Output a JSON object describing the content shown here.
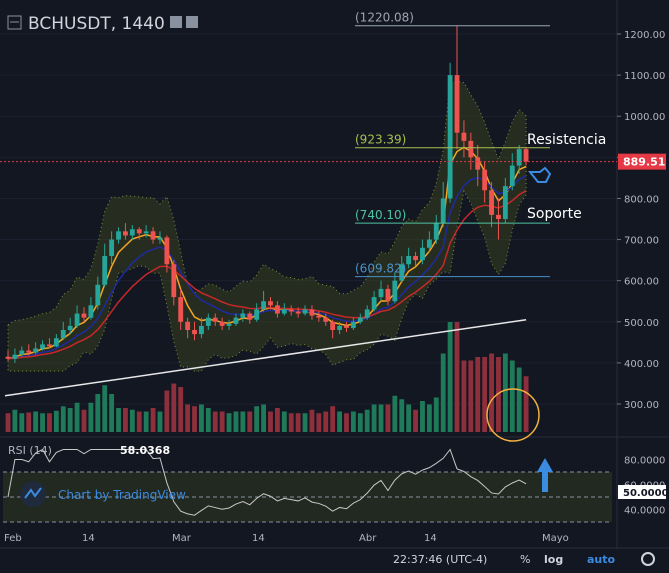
{
  "header": {
    "symbol": "BCHUSDT, 1440"
  },
  "colors": {
    "bg": "#131722",
    "up": "#26a69a",
    "down": "#ef5350",
    "vol_up": "#1f7a59",
    "vol_down": "#8e2f3c",
    "ema_fast": "#f5a623",
    "ema_mid": "#1e2aa0",
    "ema_slow": "#c62828",
    "ma_long": "#e8e8e8",
    "bands": "#3d4a1f",
    "fib_top": "#9aa5b1",
    "fib_green": "#a8c050",
    "fib_teal": "#4fc3a1",
    "fib_blue": "#4a90c8",
    "price_tag": "#e53946"
  },
  "annotations": {
    "resistencia": "Resistencia",
    "soporte": "Soporte",
    "watermark": "Chart by TradingView"
  },
  "fib_levels": [
    {
      "label": "(1220.08)",
      "value": 1220.08,
      "color_key": "fib_top"
    },
    {
      "label": "(923.39)",
      "value": 923.39,
      "color_key": "fib_green"
    },
    {
      "label": "(740.10)",
      "value": 740.1,
      "color_key": "fib_teal"
    },
    {
      "label": "(609.82)",
      "value": 609.82,
      "color_key": "fib_blue"
    }
  ],
  "price_tag": "889.51",
  "rsi": {
    "label": "RSI (14)",
    "value": "58.0368",
    "levels_tag": "50.0000"
  },
  "footer": {
    "time": "22:37:46 (UTC-4)",
    "percent": "%",
    "log": "log",
    "auto": "auto"
  },
  "chart_data": {
    "type": "candlestick",
    "title": "BCHUSDT, 1440",
    "x_labels": [
      "Feb",
      "14",
      "Mar",
      "14",
      "Abr",
      "14",
      "Mayo"
    ],
    "y_ticks": [
      "1200.00",
      "1100.00",
      "1000.00",
      "900.00",
      "800.00",
      "700.00",
      "600.00",
      "500.00",
      "400.00",
      "300.00"
    ],
    "ylim": [
      230,
      1265
    ],
    "candles": [
      [
        415,
        410,
        430,
        405
      ],
      [
        410,
        420,
        435,
        400
      ],
      [
        420,
        430,
        440,
        415
      ],
      [
        430,
        425,
        445,
        418
      ],
      [
        425,
        435,
        450,
        420
      ],
      [
        435,
        445,
        455,
        430
      ],
      [
        445,
        440,
        460,
        435
      ],
      [
        440,
        460,
        470,
        438
      ],
      [
        460,
        480,
        500,
        455
      ],
      [
        480,
        490,
        510,
        470
      ],
      [
        490,
        520,
        540,
        485
      ],
      [
        520,
        510,
        535,
        500
      ],
      [
        510,
        540,
        560,
        505
      ],
      [
        540,
        590,
        610,
        530
      ],
      [
        590,
        660,
        690,
        585
      ],
      [
        660,
        700,
        720,
        640
      ],
      [
        700,
        720,
        730,
        690
      ],
      [
        720,
        710,
        740,
        700
      ],
      [
        710,
        725,
        735,
        700
      ],
      [
        725,
        715,
        730,
        700
      ],
      [
        715,
        720,
        735,
        705
      ],
      [
        720,
        700,
        730,
        690
      ],
      [
        700,
        705,
        720,
        690
      ],
      [
        705,
        640,
        710,
        620
      ],
      [
        640,
        560,
        650,
        540
      ],
      [
        560,
        500,
        580,
        480
      ],
      [
        500,
        480,
        510,
        460
      ],
      [
        480,
        470,
        500,
        455
      ],
      [
        470,
        490,
        510,
        460
      ],
      [
        490,
        510,
        520,
        480
      ],
      [
        510,
        500,
        520,
        490
      ],
      [
        500,
        490,
        510,
        480
      ],
      [
        490,
        495,
        505,
        480
      ],
      [
        495,
        510,
        520,
        490
      ],
      [
        510,
        520,
        530,
        500
      ],
      [
        520,
        505,
        525,
        495
      ],
      [
        505,
        530,
        545,
        500
      ],
      [
        530,
        550,
        575,
        525
      ],
      [
        550,
        540,
        560,
        530
      ],
      [
        540,
        520,
        550,
        510
      ],
      [
        520,
        530,
        545,
        515
      ],
      [
        530,
        525,
        540,
        515
      ],
      [
        525,
        520,
        535,
        510
      ],
      [
        520,
        530,
        540,
        515
      ],
      [
        530,
        515,
        540,
        505
      ],
      [
        515,
        510,
        525,
        500
      ],
      [
        510,
        500,
        520,
        490
      ],
      [
        500,
        480,
        505,
        460
      ],
      [
        480,
        490,
        500,
        470
      ],
      [
        490,
        485,
        500,
        475
      ],
      [
        485,
        500,
        510,
        480
      ],
      [
        500,
        510,
        520,
        495
      ],
      [
        510,
        530,
        540,
        505
      ],
      [
        530,
        560,
        575,
        525
      ],
      [
        560,
        580,
        600,
        550
      ],
      [
        580,
        550,
        590,
        540
      ],
      [
        550,
        600,
        620,
        545
      ],
      [
        600,
        640,
        660,
        595
      ],
      [
        640,
        660,
        680,
        630
      ],
      [
        660,
        650,
        670,
        635
      ],
      [
        650,
        680,
        700,
        640
      ],
      [
        680,
        700,
        720,
        670
      ],
      [
        700,
        740,
        760,
        690
      ],
      [
        740,
        800,
        840,
        730
      ],
      [
        800,
        1100,
        1130,
        790
      ],
      [
        1100,
        960,
        1220,
        920
      ],
      [
        960,
        940,
        990,
        900
      ],
      [
        940,
        900,
        960,
        870
      ],
      [
        900,
        870,
        930,
        830
      ],
      [
        870,
        820,
        890,
        790
      ],
      [
        820,
        760,
        840,
        730
      ],
      [
        760,
        750,
        800,
        700
      ],
      [
        750,
        830,
        850,
        740
      ],
      [
        830,
        880,
        910,
        820
      ],
      [
        880,
        920,
        930,
        860
      ],
      [
        920,
        889.51,
        925,
        880
      ]
    ],
    "volume_note": "relative volume bars",
    "rsi_range": [
      30,
      90
    ]
  }
}
